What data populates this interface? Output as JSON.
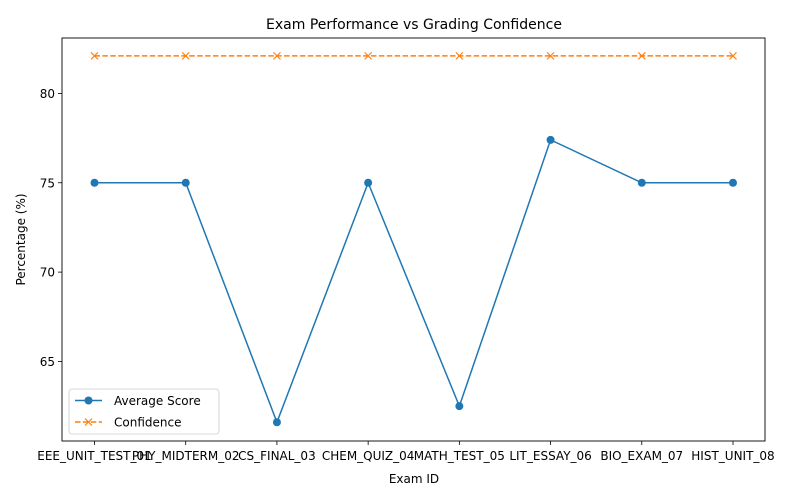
{
  "chart_data": {
    "type": "line",
    "title": "Exam Performance vs Grading Confidence",
    "xlabel": "Exam ID",
    "ylabel": "Percentage (%)",
    "categories": [
      "EEE_UNIT_TEST_01",
      "PHY_MIDTERM_02",
      "CS_FINAL_03",
      "CHEM_QUIZ_04",
      "MATH_TEST_05",
      "LIT_ESSAY_06",
      "BIO_EXAM_07",
      "HIST_UNIT_08"
    ],
    "ylim": [
      60.55,
      83.1
    ],
    "yticks": [
      65,
      70,
      75,
      80
    ],
    "grid": false,
    "legend": {
      "position": "lower-left"
    },
    "series": [
      {
        "name": "Average Score",
        "values": [
          75.0,
          75.0,
          61.6,
          75.0,
          62.5,
          77.4,
          75.0,
          75.0
        ],
        "color": "#1f77b4",
        "line_style": "solid",
        "marker": "circle"
      },
      {
        "name": "Confidence",
        "values": [
          82.1,
          82.1,
          82.1,
          82.1,
          82.1,
          82.1,
          82.1,
          82.1
        ],
        "color": "#ff7f0e",
        "line_style": "dashed",
        "marker": "x"
      }
    ]
  }
}
